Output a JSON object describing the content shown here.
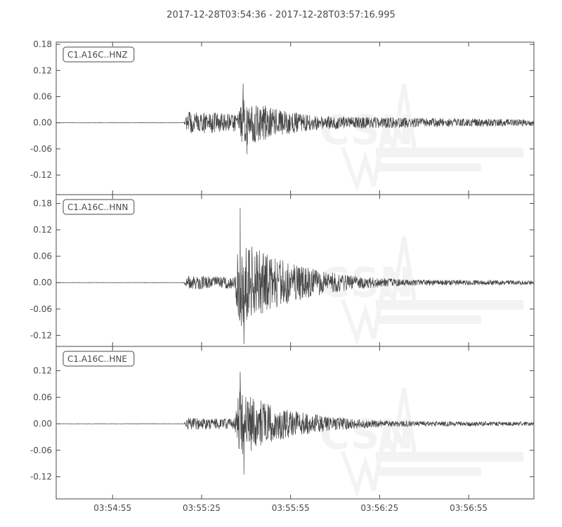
{
  "chart_data": {
    "type": "line",
    "title": "2017-12-28T03:54:36  -  2017-12-28T03:57:16.995",
    "time_range": [
      "2017-12-28T03:54:36",
      "2017-12-28T03:57:16.995"
    ],
    "x_ticks": [
      "03:54:55",
      "03:55:25",
      "03:55:55",
      "03:56:25",
      "03:56:55"
    ],
    "color": "#444444",
    "watermark_text": "CSN",
    "panels": [
      {
        "name": "C1.A16C..HNZ",
        "y_ticks": [
          "0.18",
          "0.12",
          "0.06",
          "0.00",
          "-0.06",
          "-0.12"
        ],
        "y_tick_values": [
          0.18,
          0.12,
          0.06,
          0.0,
          -0.06,
          -0.12
        ],
        "ylim": [
          -0.165,
          0.185
        ],
        "onset_time": "2017-12-28T03:55:19",
        "peak_time": "2017-12-28T03:55:39",
        "peak_positive": 0.09,
        "peak_negative": -0.072,
        "pre_event_amplitude": 0.025
      },
      {
        "name": "C1.A16C..HNN",
        "y_ticks": [
          "0.18",
          "0.12",
          "0.06",
          "0.00",
          "-0.06",
          "-0.12"
        ],
        "y_tick_values": [
          0.18,
          0.12,
          0.06,
          0.0,
          -0.06,
          -0.12
        ],
        "ylim": [
          -0.145,
          0.2
        ],
        "onset_time": "2017-12-28T03:55:19",
        "peak_time": "2017-12-28T03:55:38",
        "peak_positive": 0.17,
        "peak_negative": -0.14,
        "pre_event_amplitude": 0.015
      },
      {
        "name": "C1.A16C..HNE",
        "y_ticks": [
          "0.12",
          "0.06",
          "0.00",
          "-0.06",
          "-0.12"
        ],
        "y_tick_values": [
          0.12,
          0.06,
          0.0,
          -0.06,
          -0.12
        ],
        "ylim": [
          -0.17,
          0.175
        ],
        "onset_time": "2017-12-28T03:55:19",
        "peak_time": "2017-12-28T03:55:38",
        "peak_positive": 0.118,
        "peak_negative": -0.115,
        "pre_event_amplitude": 0.013
      }
    ]
  }
}
